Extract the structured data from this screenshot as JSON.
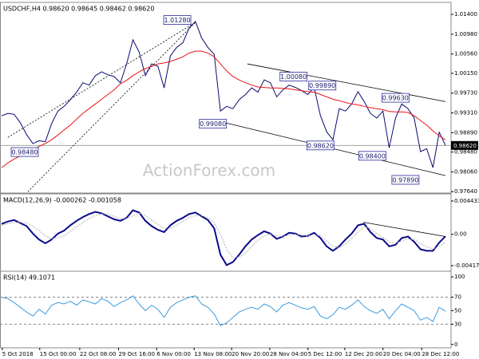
{
  "chart_data": [
    {
      "type": "line",
      "title": "USDCHF,H4  0.98620 0.98645 0.98462 0.98620",
      "watermark": "ActionForex.com",
      "xlim": [
        0,
        71
      ],
      "ylim": [
        0.9761,
        1.0162
      ],
      "yticks": [
        {
          "value": 1.014,
          "label": "1.01400"
        },
        {
          "value": 1.0098,
          "label": "1.00980"
        },
        {
          "value": 1.0056,
          "label": "1.00560"
        },
        {
          "value": 1.0015,
          "label": "1.00150"
        },
        {
          "value": 0.9973,
          "label": "0.99730"
        },
        {
          "value": 0.9931,
          "label": "0.99310"
        },
        {
          "value": 0.9889,
          "label": "0.98890"
        },
        {
          "value": 0.9848,
          "label": "0.98480"
        },
        {
          "value": 0.9806,
          "label": "0.98060"
        },
        {
          "value": 0.9764,
          "label": "0.97640"
        }
      ],
      "series": [
        {
          "color": "#0a0a6e",
          "values": [
            0.9925,
            0.993,
            0.9928,
            0.991,
            0.9885,
            0.9866,
            0.9872,
            0.987,
            0.9908,
            0.9935,
            0.9945,
            0.9959,
            0.9975,
            0.9995,
            0.999,
            1.001,
            1.0018,
            1.0012,
            1.0008,
            0.9995,
            1.0035,
            1.0086,
            1.006,
            1.001,
            1.0035,
            1.003,
            0.9984,
            1.0052,
            1.007,
            1.008,
            1.0111,
            1.0125,
            1.009,
            1.007,
            1.0055,
            0.9935,
            0.9945,
            0.994,
            0.9959,
            0.997,
            0.9984,
            0.9975,
            1.0001,
            0.9995,
            0.9965,
            0.998,
            0.999,
            0.9985,
            0.9978,
            0.997,
            0.9985,
            0.9925,
            0.9891,
            0.9874,
            0.994,
            0.9935,
            0.995,
            0.9976,
            0.9955,
            0.993,
            0.992,
            0.9935,
            0.9857,
            0.992,
            0.995,
            0.994,
            0.992,
            0.9849,
            0.9855,
            0.9815,
            0.989,
            0.9862
          ]
        },
        {
          "color": "#e8141b",
          "values": [
            0.9815,
            0.9825,
            0.9833,
            0.984,
            0.9846,
            0.9852,
            0.986,
            0.9866,
            0.9874,
            0.9884,
            0.9895,
            0.9905,
            0.9918,
            0.993,
            0.994,
            0.995,
            0.996,
            0.997,
            0.998,
            0.9993,
            1.0,
            1.001,
            1.0018,
            1.0025,
            1.003,
            1.0035,
            1.0037,
            1.004,
            1.0045,
            1.005,
            1.0058,
            1.0062,
            1.0062,
            1.0058,
            1.005,
            1.0035,
            1.002,
            1.0008,
            1.0001,
            0.9995,
            0.999,
            0.9986,
            0.9985,
            0.9984,
            0.9984,
            0.9983,
            0.9982,
            0.998,
            0.9978,
            0.9976,
            0.9975,
            0.997,
            0.9965,
            0.996,
            0.9957,
            0.9953,
            0.995,
            0.9948,
            0.9945,
            0.9942,
            0.994,
            0.9938,
            0.9934,
            0.9933,
            0.9933,
            0.9932,
            0.9925,
            0.9915,
            0.9905,
            0.9893,
            0.9882,
            0.9874
          ]
        }
      ],
      "trendlines": [
        {
          "style": "dotted",
          "x": [
            4.2,
            31.0
          ],
          "y": [
            0.9764,
            1.0123
          ]
        },
        {
          "style": "dotted",
          "x": [
            1.0,
            31.0
          ],
          "y": [
            0.9879,
            1.0123
          ]
        },
        {
          "style": "solid",
          "x": [
            39.3,
            71
          ],
          "y": [
            1.0035,
            0.9955
          ]
        },
        {
          "style": "solid",
          "x": [
            35.5,
            71
          ],
          "y": [
            0.9911,
            0.9798
          ]
        }
      ],
      "annotations": [
        {
          "label": "1.01280",
          "value": 1.0128,
          "x": 28.1
        },
        {
          "label": "1.00080",
          "value": 1.0008,
          "x": 46.7
        },
        {
          "label": "0.99890",
          "value": 0.9989,
          "x": 51.3
        },
        {
          "label": "0.99630",
          "value": 0.9963,
          "x": 63.0
        },
        {
          "label": "0.99080",
          "value": 0.9908,
          "x": 33.8
        },
        {
          "label": "0.98620",
          "value": 0.9862,
          "x": 51.0
        },
        {
          "label": "0.98400",
          "value": 0.984,
          "x": 59.3
        },
        {
          "label": "0.97890",
          "value": 0.9789,
          "x": 64.6
        },
        {
          "label": "0.98480",
          "value": 0.9848,
          "x": 3.7
        }
      ],
      "last_price": {
        "value": 0.9862,
        "label": "0.98620"
      }
    },
    {
      "type": "line",
      "title": "MACD(12,26,9) -0.000262 -0.001058",
      "xlim": [
        0,
        71
      ],
      "ylim": [
        -0.004919,
        0.005177
      ],
      "yticks": [
        0.004433,
        {
          "value": 0,
          "label": "0.00"
        },
        -0.004175
      ],
      "series": [
        {
          "color": "#0a0a8c",
          "values": [
            0.00138,
            0.0017,
            0.0019,
            0.0015,
            0.0011,
            0.0001,
            -0.0007,
            -0.0012,
            -0.0007,
            0.0001,
            0.0005,
            0.0012,
            0.0018,
            0.0023,
            0.0027,
            0.003,
            0.0028,
            0.0024,
            0.002,
            0.0018,
            0.0022,
            0.0032,
            0.0029,
            0.0018,
            0.0011,
            0.0006,
            0.0003,
            0.0012,
            0.0018,
            0.0022,
            0.0027,
            0.0029,
            0.0024,
            0.0019,
            0.0008,
            -0.0027,
            -0.0041,
            -0.0037,
            -0.0027,
            -0.0016,
            -0.0007,
            -0.0001,
            0.0004,
            0.0001,
            -0.0006,
            -0.0003,
            0.0002,
            0.0001,
            -0.0003,
            -0.0002,
            0.0002,
            -0.0005,
            -0.0016,
            -0.0022,
            -0.0016,
            -0.0007,
            0.0001,
            0.0012,
            0.0014,
            0.0003,
            -0.0005,
            -0.0007,
            -0.0016,
            -0.0014,
            -0.0005,
            -0.0003,
            -0.001,
            -0.002,
            -0.0022,
            -0.0022,
            -0.0011,
            -0.000262
          ]
        },
        {
          "color": "#b0b0b0",
          "style": "dotted",
          "values": [
            0.0012,
            0.0014,
            0.0016,
            0.0016,
            0.0015,
            0.0011,
            0.0005,
            -0.0002,
            -0.0006,
            -0.0005,
            -0.0002,
            0.0004,
            0.001,
            0.0016,
            0.0021,
            0.0025,
            0.0027,
            0.0027,
            0.0024,
            0.0021,
            0.0021,
            0.0025,
            0.0028,
            0.0025,
            0.0019,
            0.0013,
            0.0008,
            0.0008,
            0.0012,
            0.0017,
            0.0022,
            0.0025,
            0.0025,
            0.0022,
            0.0016,
            0.0,
            -0.002,
            -0.0031,
            -0.0031,
            -0.0025,
            -0.0016,
            -0.0008,
            -0.0002,
            0.0,
            -0.0002,
            -0.0003,
            -0.0001,
            0.0,
            -0.0001,
            -0.0002,
            0.0,
            -0.0002,
            -0.0009,
            -0.0016,
            -0.0018,
            -0.0013,
            -0.0006,
            0.0003,
            0.001,
            0.0008,
            0.0001,
            -0.0004,
            -0.001,
            -0.0012,
            -0.0009,
            -0.0006,
            -0.0007,
            -0.0012,
            -0.0017,
            -0.0019,
            -0.0016,
            -0.001058
          ]
        }
      ],
      "trendlines": [
        {
          "style": "solid",
          "x": [
            57.9,
            71
          ],
          "y": [
            0.0016,
            -0.0003
          ]
        }
      ]
    },
    {
      "type": "line",
      "title": "RSI(14) 49.1071",
      "xlim": [
        0,
        71
      ],
      "ylim": [
        -5,
        106
      ],
      "yticks": [
        100,
        70,
        50,
        30,
        0
      ],
      "levels": [
        70,
        30
      ],
      "xticks": [
        {
          "value": 0.1,
          "label": "5 Oct 2018"
        },
        {
          "value": 6.1,
          "label": "15 Oct 00:00"
        },
        {
          "value": 12.5,
          "label": "22 Oct 08:00"
        },
        {
          "value": 18.7,
          "label": "29 Oct 16:00"
        },
        {
          "value": 24.8,
          "label": "6 Nov 00:00"
        },
        {
          "value": 30.8,
          "label": "13 Nov 08:00"
        },
        {
          "value": 36.8,
          "label": "20 Nov 20:00"
        },
        {
          "value": 42.9,
          "label": "28 Nov 04:00"
        },
        {
          "value": 49.0,
          "label": "5 Dec 12:00"
        },
        {
          "value": 54.9,
          "label": "12 Dec 20:00"
        },
        {
          "value": 61.0,
          "label": "20 Dec 04:00"
        },
        {
          "value": 67.2,
          "label": "28 Dec 12:00"
        }
      ],
      "series": [
        {
          "color": "#3c9be0",
          "values": [
            70,
            68,
            62,
            55,
            48,
            42,
            52,
            45,
            58,
            62,
            60,
            64,
            58,
            66,
            63,
            60,
            68,
            64,
            56,
            62,
            66,
            72,
            60,
            50,
            58,
            52,
            40,
            55,
            62,
            66,
            70,
            72,
            60,
            55,
            45,
            28,
            32,
            40,
            48,
            52,
            55,
            52,
            60,
            56,
            48,
            58,
            62,
            58,
            54,
            52,
            56,
            42,
            38,
            44,
            55,
            52,
            58,
            66,
            56,
            50,
            46,
            52,
            38,
            50,
            60,
            55,
            50,
            36,
            40,
            34,
            55,
            49.1071
          ]
        }
      ]
    }
  ]
}
